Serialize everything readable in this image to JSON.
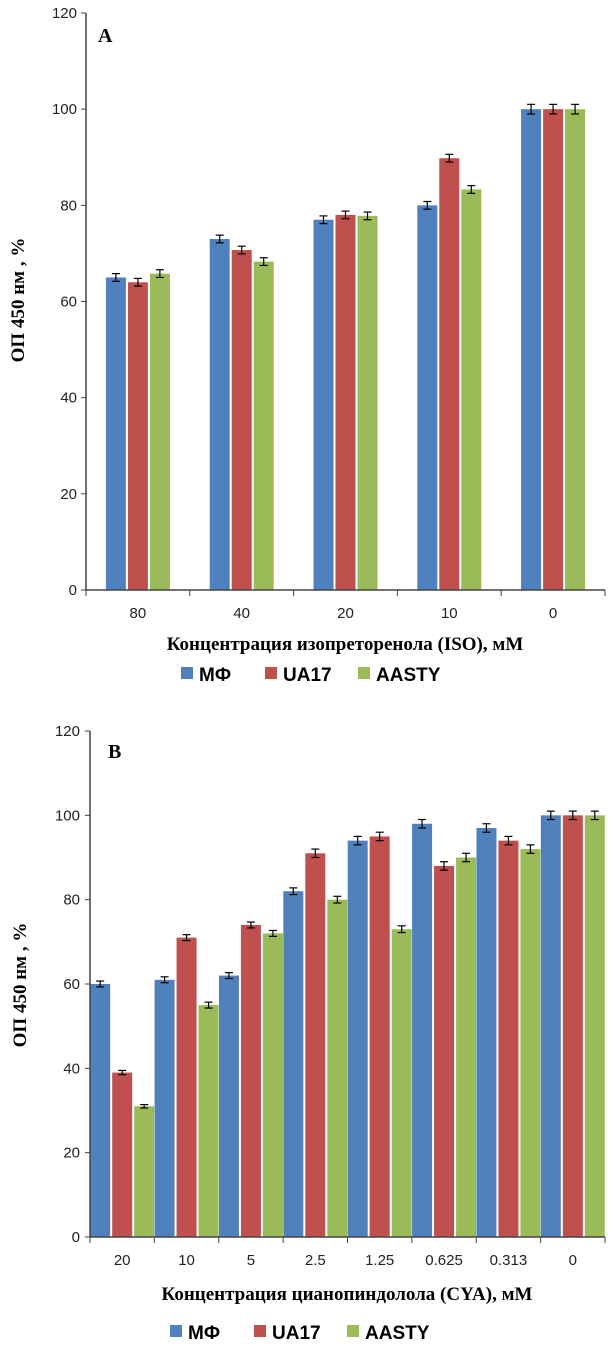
{
  "chart_data": [
    {
      "type": "bar",
      "panel_label": "A",
      "categories": [
        "80",
        "40",
        "20",
        "10",
        "0"
      ],
      "series": [
        {
          "name": "МФ",
          "color": "#4F81BD",
          "values": [
            65,
            73,
            77,
            80,
            100
          ],
          "errors": [
            0.8,
            0.8,
            0.8,
            0.8,
            1.0
          ]
        },
        {
          "name": "UA17",
          "color": "#C0504D",
          "values": [
            64,
            70.7,
            78,
            89.8,
            100
          ],
          "errors": [
            0.8,
            0.8,
            0.8,
            0.8,
            1.0
          ]
        },
        {
          "name": "AASTY",
          "color": "#9BBB59",
          "values": [
            65.8,
            68.3,
            77.8,
            83.3,
            100
          ],
          "errors": [
            0.8,
            0.8,
            0.8,
            0.8,
            1.0
          ]
        }
      ],
      "yticks": [
        "0",
        "20",
        "40",
        "60",
        "80",
        "100",
        "120"
      ],
      "ylim": [
        0,
        120
      ],
      "ylabel": "ОП 450 нм , %",
      "xlabel": "Концентрация изопреторенола (ISO), мМ",
      "legend_position": "bottom"
    },
    {
      "type": "bar",
      "panel_label": "B",
      "categories": [
        "20",
        "10",
        "5",
        "2.5",
        "1.25",
        "0.625",
        "0.313",
        "0"
      ],
      "series": [
        {
          "name": "МФ",
          "color": "#4F81BD",
          "values": [
            60,
            61,
            62,
            82,
            94,
            98,
            97,
            100
          ],
          "errors": [
            0.7,
            0.7,
            0.7,
            0.8,
            1.0,
            1.0,
            1.0,
            1.0
          ]
        },
        {
          "name": "UA17",
          "color": "#C0504D",
          "values": [
            39,
            71,
            74,
            91,
            95,
            88,
            94,
            100
          ],
          "errors": [
            0.5,
            0.7,
            0.7,
            1.0,
            1.0,
            1.0,
            1.0,
            1.0
          ]
        },
        {
          "name": "AASTY",
          "color": "#9BBB59",
          "values": [
            31,
            55,
            72,
            80,
            73,
            90,
            92,
            100
          ],
          "errors": [
            0.4,
            0.7,
            0.7,
            0.8,
            0.8,
            1.0,
            1.0,
            1.0
          ]
        }
      ],
      "yticks": [
        "0",
        "20",
        "40",
        "60",
        "80",
        "100",
        "120"
      ],
      "ylim": [
        0,
        120
      ],
      "ylabel": "ОП 450 нм , %",
      "xlabel": "Концентрация цианопиндолола (CYA), мМ",
      "legend_position": "bottom"
    }
  ]
}
